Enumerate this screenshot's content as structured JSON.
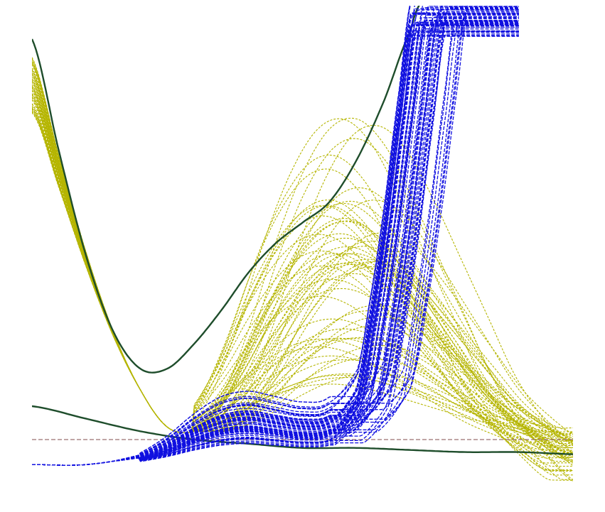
{
  "chart_data": {
    "type": "line",
    "title": "",
    "xlabel": "",
    "ylabel": "",
    "xlim": [
      0,
      1
    ],
    "ylim": [
      -0.1,
      1.1
    ],
    "grid": false,
    "legend": "none",
    "axes_visible": false,
    "colors": {
      "blue_family": "#1010e0",
      "olive_family": "#b5b500",
      "dark_green": "#1e4d2b",
      "reference": "#9a7070"
    },
    "series": [
      {
        "group": "dark-green",
        "style": "solid",
        "x": [
          0,
          0.05,
          0.1,
          0.15,
          0.2,
          0.25,
          0.3,
          0.35,
          0.4,
          0.45,
          0.5,
          0.55,
          0.6,
          0.65,
          0.7,
          0.72
        ],
        "y": [
          1.02,
          0.75,
          0.5,
          0.32,
          0.23,
          0.23,
          0.29,
          0.37,
          0.46,
          0.53,
          0.58,
          0.63,
          0.73,
          0.87,
          1.04,
          1.11
        ]
      },
      {
        "group": "dark-green",
        "style": "solid",
        "x": [
          0,
          0.1,
          0.2,
          0.3,
          0.4,
          0.5,
          0.6,
          0.7,
          0.8,
          0.9,
          1.0
        ],
        "y": [
          0.14,
          0.11,
          0.08,
          0.06,
          0.05,
          0.04,
          0.04,
          0.035,
          0.03,
          0.03,
          0.025
        ]
      },
      {
        "group": "reference",
        "style": "dashed",
        "x": [
          0,
          1.0
        ],
        "y": [
          0.06,
          0.06
        ]
      },
      {
        "group": "olive",
        "style": "dashed",
        "count": 60,
        "x": [
          0,
          0.05,
          0.1,
          0.15,
          0.2,
          0.25,
          0.3,
          0.35,
          0.4,
          0.45,
          0.5,
          0.55,
          0.6,
          0.65,
          0.7,
          0.75,
          0.8,
          0.85,
          0.9,
          0.95,
          1.0
        ],
        "y": [
          0.98,
          0.74,
          0.51,
          0.32,
          0.18,
          0.09,
          0.08,
          0.12,
          0.2,
          0.3,
          0.38,
          0.43,
          0.44,
          0.41,
          0.35,
          0.28,
          0.21,
          0.14,
          0.09,
          0.05,
          0.02
        ]
      },
      {
        "group": "blue",
        "style": "dashed",
        "count": 60,
        "x": [
          0,
          0.1,
          0.2,
          0.25,
          0.3,
          0.35,
          0.4,
          0.45,
          0.5,
          0.55,
          0.6,
          0.62,
          0.65,
          0.68,
          0.7
        ],
        "y": [
          0.0,
          0.0,
          0.02,
          0.05,
          0.09,
          0.12,
          0.13,
          0.12,
          0.11,
          0.12,
          0.2,
          0.35,
          0.6,
          0.9,
          1.1
        ]
      }
    ]
  }
}
